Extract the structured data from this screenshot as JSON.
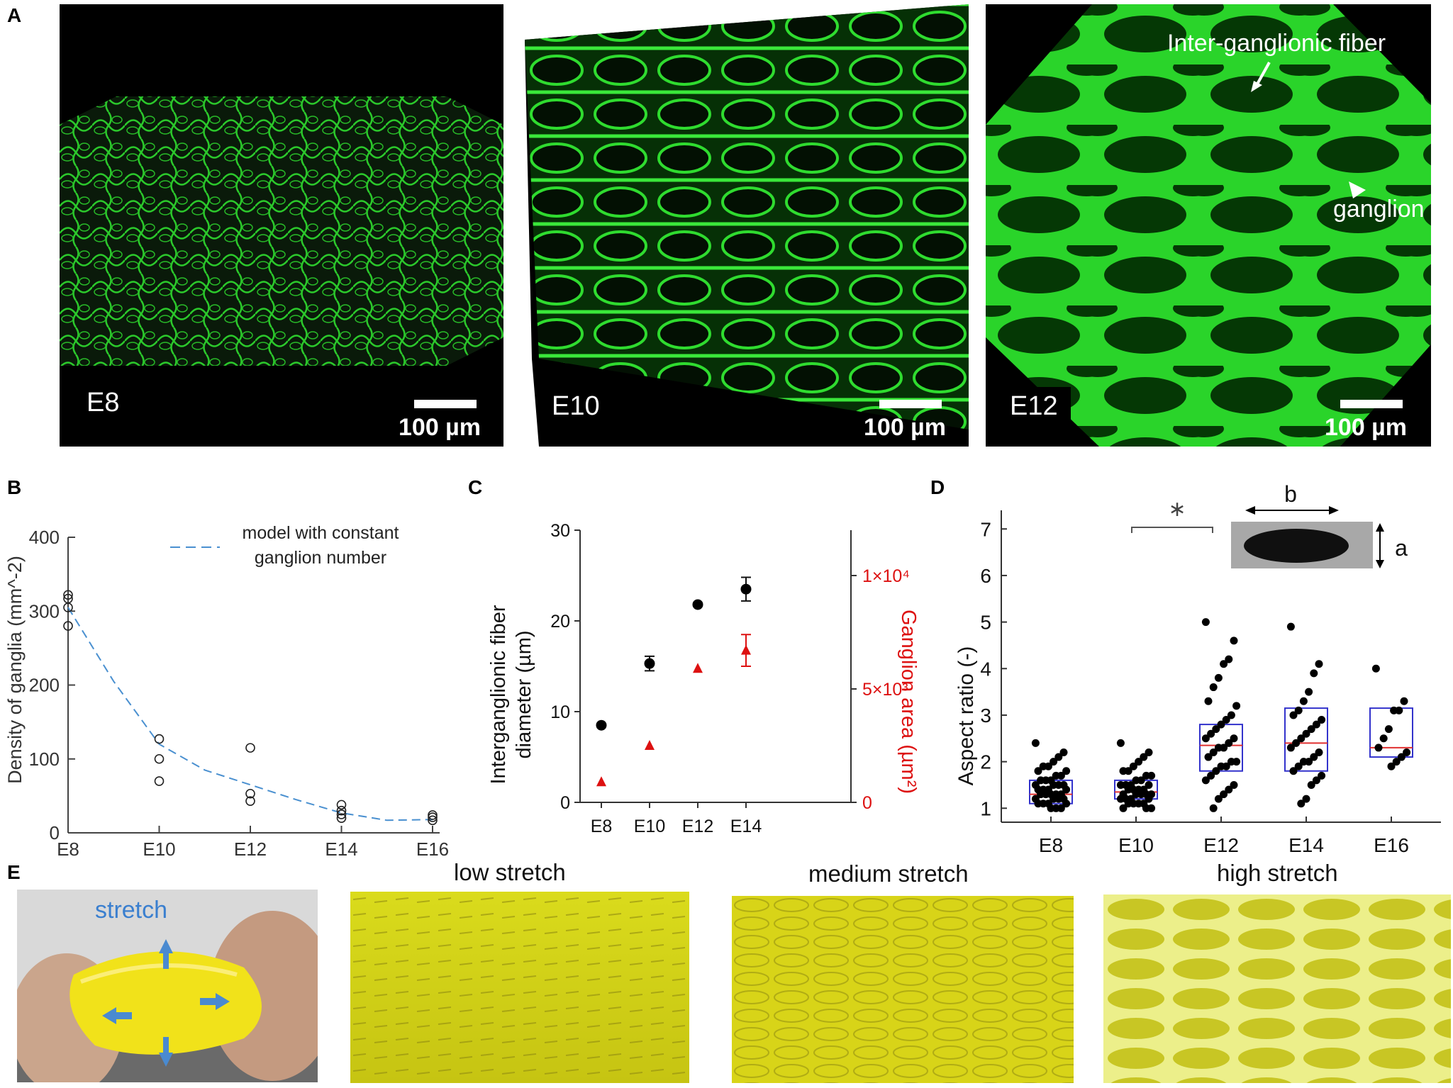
{
  "panel_letters": {
    "a": "A",
    "b": "B",
    "c": "C",
    "d": "D",
    "e": "E"
  },
  "micrographs": [
    {
      "stage": "E8",
      "scale": "100 µm"
    },
    {
      "stage": "E10",
      "scale": "100 µm"
    },
    {
      "stage": "E12",
      "scale": "100 µm",
      "annotations": {
        "fiber": "Inter-ganglionic fiber",
        "ganglion": "ganglion"
      }
    }
  ],
  "colors": {
    "fluorescence": "#2fdc2f",
    "model_line": "#4a90d0",
    "box": "#3333cc",
    "median": "#e03030",
    "red_axis": "#dd1111",
    "rubber": "#d8dc20"
  },
  "chart_data": [
    {
      "panel": "B",
      "type": "scatter",
      "ylabel": "Density of ganglia (mm^-2)",
      "xlabel": "",
      "categories": [
        "E8",
        "E10",
        "E12",
        "E14",
        "E16"
      ],
      "ylim": [
        0,
        400
      ],
      "yticks": [
        "0",
        "100",
        "200",
        "300",
        "400"
      ],
      "legend": "model with constant ganglion number",
      "legend_line2": "ganglion number",
      "legend_line1": "model with constant",
      "points": [
        {
          "x": "E8",
          "y": [
            322,
            317,
            305,
            280
          ]
        },
        {
          "x": "E10",
          "y": [
            127,
            100,
            70
          ]
        },
        {
          "x": "E12",
          "y": [
            115,
            53,
            43
          ]
        },
        {
          "x": "E14",
          "y": [
            38,
            30,
            25,
            20
          ]
        },
        {
          "x": "E16",
          "y": [
            24,
            21,
            17
          ]
        }
      ],
      "model_curve": [
        {
          "x": 8,
          "y": 305
        },
        {
          "x": 9,
          "y": 205
        },
        {
          "x": 10,
          "y": 120
        },
        {
          "x": 11,
          "y": 85
        },
        {
          "x": 12,
          "y": 65
        },
        {
          "x": 13,
          "y": 45
        },
        {
          "x": 14,
          "y": 27
        },
        {
          "x": 15,
          "y": 17
        },
        {
          "x": 16,
          "y": 18
        }
      ]
    },
    {
      "panel": "C",
      "type": "scatter",
      "ylabel_left": "Interganglionic fiber diameter (µm)",
      "ylabel_left_line1": "Interganglionic fiber",
      "ylabel_left_line2": "diameter (µm)",
      "ylabel_right": "Ganglion area (µm²)",
      "categories": [
        "E8",
        "E10",
        "E12",
        "E14"
      ],
      "ylim_left": [
        0,
        30
      ],
      "yticks_left": [
        "0",
        "10",
        "20",
        "30"
      ],
      "ylim_right": [
        0,
        12000
      ],
      "yticks_right": [
        "0",
        "5×10³",
        "1×10⁴"
      ],
      "series": [
        {
          "name": "fiber diameter",
          "axis": "left",
          "values": [
            8.5,
            15.3,
            21.8,
            23.5
          ],
          "errors": [
            0,
            0.8,
            0,
            1.3
          ]
        },
        {
          "name": "ganglion area",
          "axis": "right",
          "values": [
            900,
            2500,
            5900,
            6700
          ],
          "errors": [
            0,
            0,
            0,
            700
          ]
        }
      ]
    },
    {
      "panel": "D",
      "type": "box",
      "ylabel": "Aspect ratio (-)",
      "categories": [
        "E8",
        "E10",
        "E12",
        "E14",
        "E16"
      ],
      "ylim": [
        0.7,
        7.4
      ],
      "yticks": [
        "1",
        "2",
        "3",
        "4",
        "5",
        "6",
        "7"
      ],
      "boxes": [
        {
          "q1": 1.1,
          "median": 1.3,
          "q3": 1.6
        },
        {
          "q1": 1.2,
          "median": 1.35,
          "q3": 1.6
        },
        {
          "q1": 1.8,
          "median": 2.35,
          "q3": 2.8
        },
        {
          "q1": 1.8,
          "median": 2.4,
          "q3": 3.15
        },
        {
          "q1": 2.1,
          "median": 2.3,
          "q3": 3.15
        }
      ],
      "points": [
        [
          2.4,
          2.2,
          2.1,
          2.0,
          1.9,
          1.9,
          1.8,
          1.8,
          1.7,
          1.7,
          1.6,
          1.6,
          1.6,
          1.5,
          1.5,
          1.5,
          1.5,
          1.4,
          1.4,
          1.4,
          1.4,
          1.3,
          1.3,
          1.3,
          1.3,
          1.3,
          1.2,
          1.2,
          1.2,
          1.2,
          1.1,
          1.1,
          1.1,
          1.1,
          1.0,
          1.0,
          1.0
        ],
        [
          2.4,
          2.2,
          2.1,
          2.0,
          1.9,
          1.8,
          1.8,
          1.7,
          1.7,
          1.6,
          1.6,
          1.5,
          1.5,
          1.5,
          1.5,
          1.4,
          1.4,
          1.4,
          1.4,
          1.3,
          1.3,
          1.3,
          1.3,
          1.3,
          1.2,
          1.2,
          1.2,
          1.2,
          1.1,
          1.1,
          1.1,
          1.1,
          1.0,
          1.0,
          1.0
        ],
        [
          5.0,
          4.6,
          4.2,
          4.1,
          3.8,
          3.6,
          3.3,
          3.2,
          3.0,
          2.9,
          2.8,
          2.7,
          2.6,
          2.5,
          2.5,
          2.4,
          2.3,
          2.3,
          2.2,
          2.1,
          2.0,
          2.0,
          1.9,
          1.9,
          1.8,
          1.7,
          1.6,
          1.5,
          1.4,
          1.3,
          1.2,
          1.0
        ],
        [
          4.9,
          4.1,
          3.9,
          3.5,
          3.3,
          3.1,
          3.0,
          2.9,
          2.8,
          2.7,
          2.6,
          2.5,
          2.4,
          2.3,
          2.2,
          2.1,
          2.0,
          2.0,
          1.9,
          1.8,
          1.7,
          1.6,
          1.5,
          1.2,
          1.1
        ],
        [
          4.0,
          3.3,
          3.1,
          3.1,
          2.7,
          2.5,
          2.3,
          2.2,
          2.1,
          2.0,
          1.9
        ]
      ],
      "significance": "∗",
      "inset": {
        "b": "b",
        "a": "a"
      }
    }
  ],
  "panel_e": {
    "hand_label": "stretch",
    "titles": [
      "low stretch",
      "medium stretch",
      "high stretch"
    ]
  }
}
